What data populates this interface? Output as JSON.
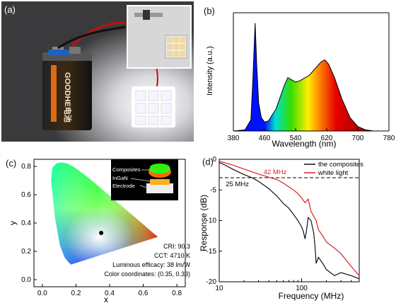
{
  "panels": {
    "a": "(a)",
    "b": "(b)",
    "c": "(c)",
    "d": "(d)"
  },
  "photo_a": {
    "battery_text": "GOODHE电池"
  },
  "chart_b": {
    "type": "area",
    "ylabel": "Intensity (a.u.)",
    "xlabel": "Wavelength (nm)",
    "xlim": [
      380,
      780
    ],
    "ticks": [
      "380",
      "460",
      "540",
      "620",
      "700",
      "780"
    ],
    "x": [
      380,
      410,
      425,
      430,
      436,
      440,
      445,
      452,
      460,
      470,
      490,
      510,
      520,
      530,
      540,
      550,
      560,
      575,
      590,
      605,
      615,
      625,
      640,
      660,
      680,
      700,
      720,
      740,
      780
    ],
    "y": [
      0,
      0.01,
      0.1,
      0.45,
      0.97,
      0.6,
      0.25,
      0.12,
      0.08,
      0.09,
      0.2,
      0.4,
      0.48,
      0.46,
      0.44,
      0.45,
      0.47,
      0.5,
      0.56,
      0.62,
      0.64,
      0.6,
      0.48,
      0.28,
      0.12,
      0.04,
      0.01,
      0,
      0
    ],
    "colors": {
      "blue": "#0011ff",
      "cyan": "#00e0d0",
      "green": "#33dd00",
      "yellow": "#ffee00",
      "orange": "#ff8800",
      "red": "#e60000",
      "darkred": "#700000"
    }
  },
  "chart_c": {
    "type": "scatter",
    "xlabel": "x",
    "ylabel": "y",
    "xticks": [
      "0.0",
      "0.2",
      "0.4",
      "0.6",
      "0.8"
    ],
    "yticks": [
      "0.0",
      "0.2",
      "0.4",
      "0.6",
      "0.8"
    ],
    "point": {
      "x": 0.35,
      "y": 0.33
    },
    "inset_labels": [
      "Composites",
      "InGaN",
      "Electrode"
    ],
    "annotations": [
      "CRI: 90.3",
      "CCT: 4710 K",
      "Luminous efficacy: 38 lm/W",
      "Color coordinates: (0.35, 0.33)"
    ]
  },
  "chart_data": {
    "type": "line",
    "xlabel": "Frequency (MHz)",
    "ylabel": "Response (dB)",
    "x_scale": "log",
    "xlim": [
      10,
      500
    ],
    "ylim": [
      -20,
      0
    ],
    "xticks": [
      "10",
      "100"
    ],
    "yticks": [
      "0",
      "-5",
      "-10",
      "-15",
      "-20"
    ],
    "threshold_db": -3,
    "annotations": [
      "42 MHz",
      "25 MHz"
    ],
    "series": [
      {
        "name": "the composites",
        "color": "#111111",
        "x": [
          10,
          12,
          15,
          20,
          25,
          30,
          40,
          50,
          60,
          70,
          80,
          90,
          100,
          105,
          110,
          115,
          120,
          130,
          140,
          145,
          150,
          160,
          180,
          200,
          250,
          300,
          400,
          500
        ],
        "y": [
          -0.5,
          -1,
          -1.7,
          -2.5,
          -3,
          -3.6,
          -4.8,
          -6,
          -7.2,
          -8,
          -9,
          -10,
          -11,
          -11.8,
          -13,
          -11.5,
          -9.5,
          -10,
          -12,
          -14,
          -17,
          -16,
          -17,
          -18,
          -19,
          -18.5,
          -19,
          -19.5
        ]
      },
      {
        "name": "white light",
        "color": "#e02020",
        "x": [
          10,
          15,
          20,
          30,
          42,
          50,
          60,
          70,
          80,
          90,
          100,
          110,
          120,
          130,
          140,
          150,
          160,
          180,
          200,
          250,
          300,
          400,
          500
        ],
        "y": [
          -0.3,
          -1,
          -1.6,
          -2.4,
          -3,
          -3.3,
          -3.9,
          -4.5,
          -5,
          -5.6,
          -6.3,
          -7.1,
          -6.5,
          -8.5,
          -9.3,
          -10,
          -11.5,
          -12.5,
          -13.5,
          -14.5,
          -15.4,
          -17.5,
          -19
        ]
      }
    ]
  }
}
